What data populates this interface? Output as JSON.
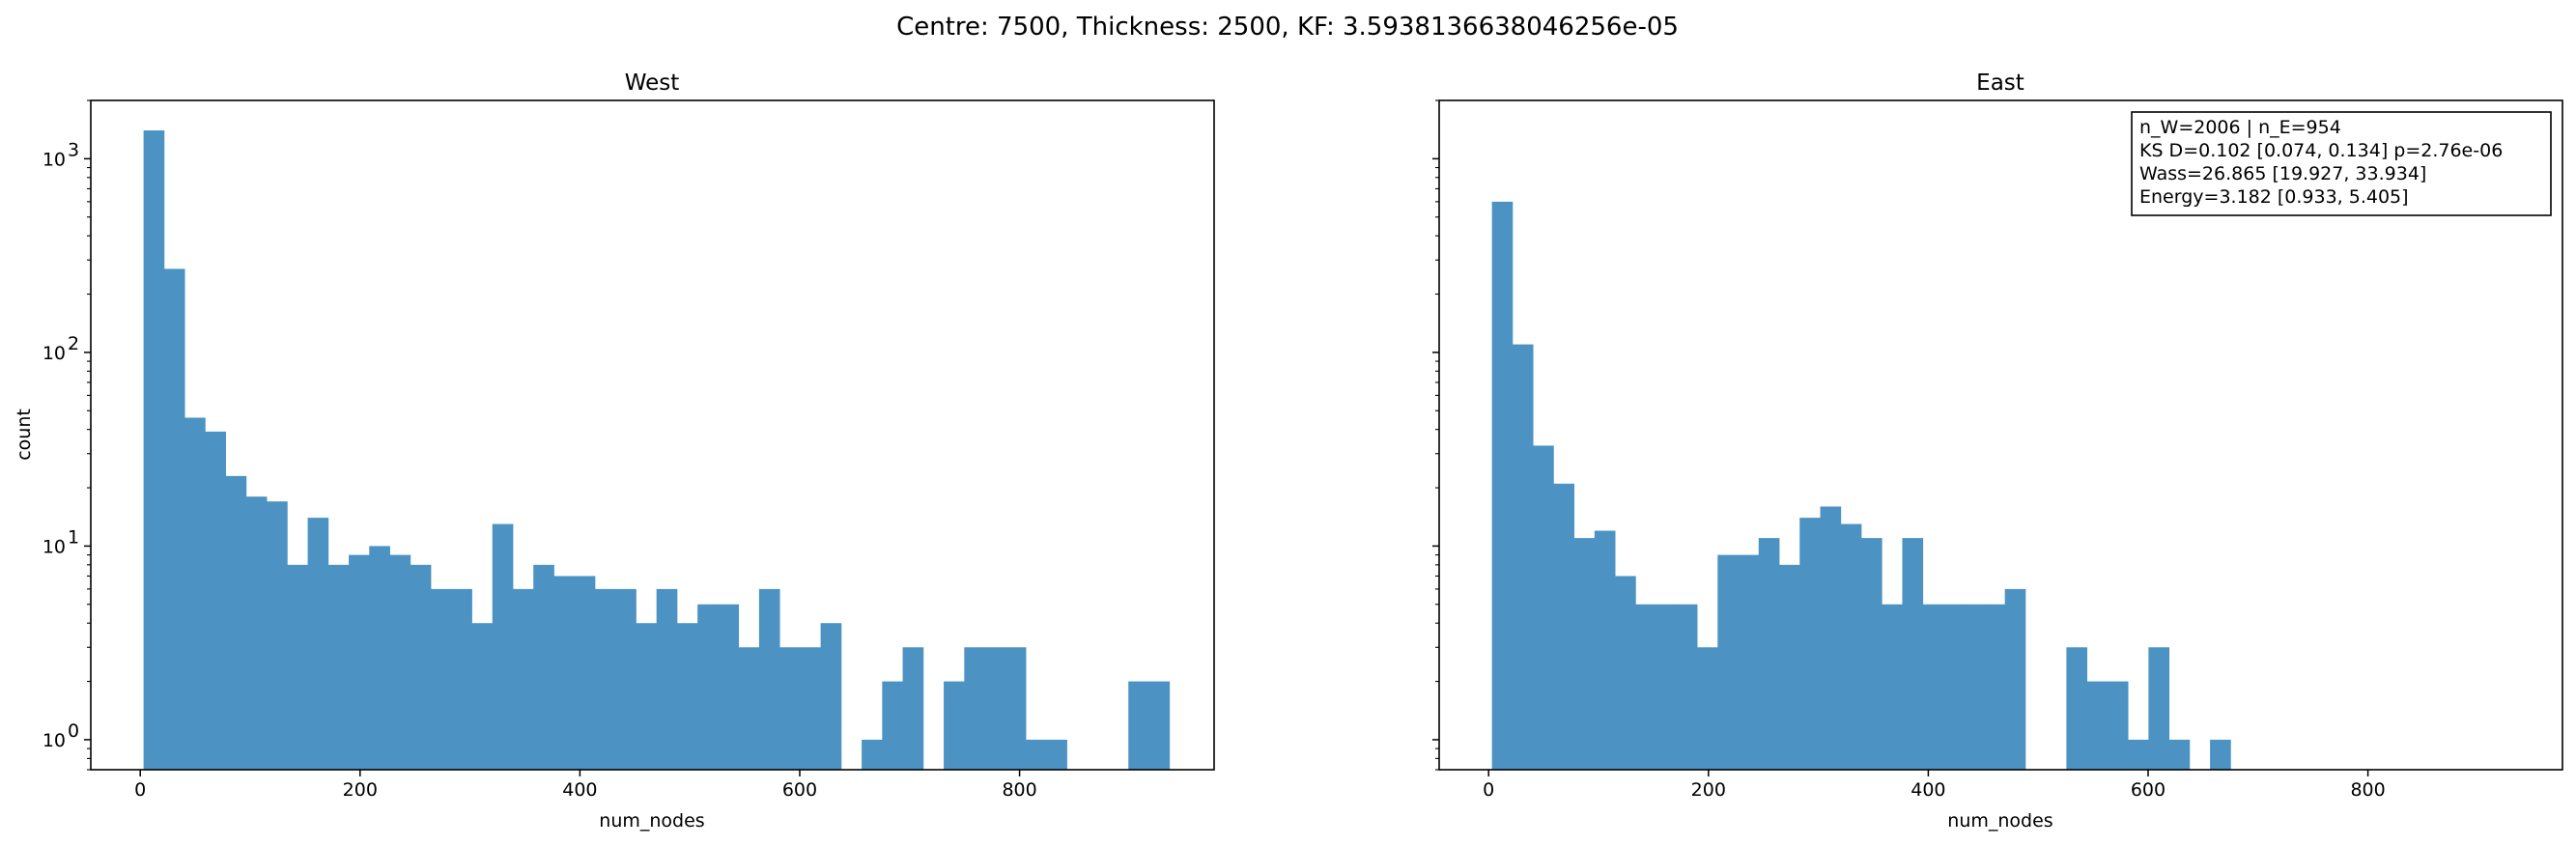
{
  "chart_data": {
    "suptitle": "Centre: 7500, Thickness: 2500, KF: 3.5938136638046256e-05",
    "type": "bar",
    "yscale": "log",
    "bar_color": "#4c93c3",
    "bin_width": 18.67,
    "panels": [
      {
        "title": "West",
        "xlabel": "num_nodes",
        "ylabel": "count",
        "xlim": [
          -45,
          977
        ],
        "ylim": [
          0.7,
          2000
        ],
        "xticks": [
          0,
          200,
          400,
          600,
          800
        ],
        "yticks": [
          {
            "value": 1,
            "base": "10",
            "exp": "0"
          },
          {
            "value": 10,
            "base": "10",
            "exp": "1"
          },
          {
            "value": 100,
            "base": "10",
            "exp": "2"
          },
          {
            "value": 1000,
            "base": "10",
            "exp": "3"
          }
        ],
        "bins": [
          {
            "x": 3,
            "count": 1400
          },
          {
            "x": 21.67,
            "count": 270
          },
          {
            "x": 40.33,
            "count": 46
          },
          {
            "x": 59,
            "count": 39
          },
          {
            "x": 77.67,
            "count": 23
          },
          {
            "x": 96.33,
            "count": 18
          },
          {
            "x": 115,
            "count": 17
          },
          {
            "x": 133.67,
            "count": 8
          },
          {
            "x": 152.33,
            "count": 14
          },
          {
            "x": 171,
            "count": 8
          },
          {
            "x": 189.67,
            "count": 9
          },
          {
            "x": 208.33,
            "count": 10
          },
          {
            "x": 227,
            "count": 9
          },
          {
            "x": 245.67,
            "count": 8
          },
          {
            "x": 264.33,
            "count": 6
          },
          {
            "x": 283,
            "count": 6
          },
          {
            "x": 301.67,
            "count": 4
          },
          {
            "x": 320.33,
            "count": 13
          },
          {
            "x": 339,
            "count": 6
          },
          {
            "x": 357.67,
            "count": 8
          },
          {
            "x": 376.33,
            "count": 7
          },
          {
            "x": 395,
            "count": 7
          },
          {
            "x": 413.67,
            "count": 6
          },
          {
            "x": 432.33,
            "count": 6
          },
          {
            "x": 451,
            "count": 4
          },
          {
            "x": 469.67,
            "count": 6
          },
          {
            "x": 488.33,
            "count": 4
          },
          {
            "x": 507,
            "count": 5
          },
          {
            "x": 525.67,
            "count": 5
          },
          {
            "x": 544.33,
            "count": 3
          },
          {
            "x": 563,
            "count": 6
          },
          {
            "x": 581.67,
            "count": 3
          },
          {
            "x": 600.33,
            "count": 3
          },
          {
            "x": 619,
            "count": 4
          },
          {
            "x": 656.33,
            "count": 1
          },
          {
            "x": 675,
            "count": 2
          },
          {
            "x": 693.67,
            "count": 3
          },
          {
            "x": 731,
            "count": 2
          },
          {
            "x": 749.67,
            "count": 3
          },
          {
            "x": 768.33,
            "count": 3
          },
          {
            "x": 787,
            "count": 3
          },
          {
            "x": 805.67,
            "count": 1
          },
          {
            "x": 824.33,
            "count": 1
          },
          {
            "x": 899,
            "count": 2
          },
          {
            "x": 917.67,
            "count": 2
          }
        ]
      },
      {
        "title": "East",
        "xlabel": "num_nodes",
        "ylabel": "",
        "xlim": [
          -45,
          977
        ],
        "ylim": [
          0.7,
          2000
        ],
        "xticks": [
          0,
          200,
          400,
          600,
          800
        ],
        "yticks": [
          {
            "value": 1,
            "base": "",
            "exp": ""
          },
          {
            "value": 10,
            "base": "",
            "exp": ""
          },
          {
            "value": 100,
            "base": "",
            "exp": ""
          },
          {
            "value": 1000,
            "base": "",
            "exp": ""
          }
        ],
        "bins": [
          {
            "x": 3,
            "count": 600
          },
          {
            "x": 21.67,
            "count": 110
          },
          {
            "x": 40.33,
            "count": 33
          },
          {
            "x": 59,
            "count": 21
          },
          {
            "x": 77.67,
            "count": 11
          },
          {
            "x": 96.33,
            "count": 12
          },
          {
            "x": 115,
            "count": 7
          },
          {
            "x": 133.67,
            "count": 5
          },
          {
            "x": 152.33,
            "count": 5
          },
          {
            "x": 171,
            "count": 5
          },
          {
            "x": 189.67,
            "count": 3
          },
          {
            "x": 208.33,
            "count": 9
          },
          {
            "x": 227,
            "count": 9
          },
          {
            "x": 245.67,
            "count": 11
          },
          {
            "x": 264.33,
            "count": 8
          },
          {
            "x": 283,
            "count": 14
          },
          {
            "x": 301.67,
            "count": 16
          },
          {
            "x": 320.33,
            "count": 13
          },
          {
            "x": 339,
            "count": 11
          },
          {
            "x": 357.67,
            "count": 5
          },
          {
            "x": 376.33,
            "count": 11
          },
          {
            "x": 395,
            "count": 5
          },
          {
            "x": 413.67,
            "count": 5
          },
          {
            "x": 432.33,
            "count": 5
          },
          {
            "x": 451,
            "count": 5
          },
          {
            "x": 469.67,
            "count": 6
          },
          {
            "x": 525.67,
            "count": 3
          },
          {
            "x": 544.33,
            "count": 2
          },
          {
            "x": 563,
            "count": 2
          },
          {
            "x": 581.67,
            "count": 1
          },
          {
            "x": 600.33,
            "count": 3
          },
          {
            "x": 619,
            "count": 1
          },
          {
            "x": 656.33,
            "count": 1
          }
        ],
        "stats": [
          "n_W=2006 | n_E=954",
          "KS D=0.102 [0.074, 0.134]  p=2.76e-06",
          "Wass=26.865 [19.927, 33.934]",
          "Energy=3.182 [0.933, 5.405]"
        ]
      }
    ]
  }
}
